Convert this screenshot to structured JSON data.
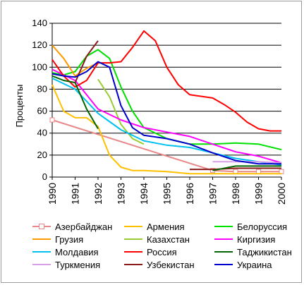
{
  "chart_data": {
    "type": "line",
    "title": "",
    "xlabel": "",
    "ylabel": "Проценты",
    "ylim": [
      0,
      140
    ],
    "yticks": [
      0,
      20,
      40,
      60,
      80,
      100,
      120,
      140
    ],
    "x": [
      1990,
      1991,
      1992,
      1993,
      1994,
      1995,
      1996,
      1997,
      1998,
      1999,
      2000
    ],
    "xtick_labels": [
      "1990",
      "1991",
      "1992",
      "1993",
      "1994",
      "1995",
      "1996",
      "1997",
      "1998",
      "1999",
      "2000"
    ],
    "grid": "horizontal",
    "legend_position": "bottom",
    "series": [
      {
        "name": "Азербайджан",
        "color": "#e8888a",
        "marker": "square",
        "points": [
          [
            1990,
            52
          ],
          [
            1997,
            6
          ],
          [
            1998,
            5
          ],
          [
            1999,
            5
          ],
          [
            2000,
            5
          ]
        ]
      },
      {
        "name": "Армения",
        "color": "#ffc000",
        "points": [
          [
            1990,
            84
          ],
          [
            1990.5,
            60
          ],
          [
            1991,
            54
          ],
          [
            1991.5,
            54
          ],
          [
            1992,
            46
          ],
          [
            1992.5,
            20
          ],
          [
            1993,
            9
          ],
          [
            1993.5,
            6
          ],
          [
            1994,
            6
          ],
          [
            1995,
            5
          ],
          [
            1996,
            3
          ],
          [
            1997,
            3
          ],
          [
            1998,
            3
          ],
          [
            1999,
            3
          ],
          [
            2000,
            3
          ]
        ]
      },
      {
        "name": "Белоруссия",
        "color": "#00e000",
        "points": [
          [
            1990,
            95
          ],
          [
            1990.5,
            93
          ],
          [
            1991,
            96
          ],
          [
            1991.5,
            110
          ],
          [
            1992,
            116
          ],
          [
            1992.5,
            108
          ],
          [
            1993,
            82
          ],
          [
            1993.5,
            60
          ],
          [
            1994,
            45
          ],
          [
            1995,
            35
          ],
          [
            1996,
            30
          ],
          [
            1997,
            30
          ],
          [
            1998,
            31
          ],
          [
            1999,
            30
          ],
          [
            2000,
            25
          ]
        ]
      },
      {
        "name": "Грузия",
        "color": "#ff9900",
        "points": [
          [
            1990,
            120
          ],
          [
            1990.5,
            108
          ],
          [
            1991,
            92
          ],
          [
            1991.5,
            99
          ],
          [
            1992,
            104
          ]
        ]
      },
      {
        "name": "Казахстан",
        "color": "#9acd32",
        "points": [
          [
            1992,
            89
          ],
          [
            1992.5,
            73
          ],
          [
            1993,
            48
          ],
          [
            1993.5,
            35
          ],
          [
            1994,
            30
          ]
        ]
      },
      {
        "name": "Киргизия",
        "color": "#ff00ff",
        "points": [
          [
            1990,
            98
          ],
          [
            1991,
            88
          ],
          [
            1992,
            62
          ],
          [
            1993,
            52
          ],
          [
            1994,
            45
          ],
          [
            1995,
            41
          ],
          [
            1996,
            37
          ],
          [
            1997,
            30
          ],
          [
            1998,
            23
          ],
          [
            1999,
            19
          ],
          [
            2000,
            13
          ]
        ]
      },
      {
        "name": "Молдавия",
        "color": "#00c0f0",
        "points": [
          [
            1990,
            90
          ],
          [
            1991,
            80
          ],
          [
            1992,
            58
          ],
          [
            1993,
            43
          ],
          [
            1994,
            33
          ],
          [
            1995,
            29
          ],
          [
            1996,
            27
          ],
          [
            1997,
            22
          ],
          [
            1998,
            17
          ],
          [
            1999,
            14
          ],
          [
            2000,
            11
          ]
        ]
      },
      {
        "name": "Россия",
        "color": "#ff0000",
        "points": [
          [
            1990,
            107
          ],
          [
            1990.5,
            92
          ],
          [
            1991,
            82
          ],
          [
            1991.5,
            88
          ],
          [
            1992,
            104
          ],
          [
            1992.5,
            104
          ],
          [
            1993,
            105
          ],
          [
            1993.5,
            118
          ],
          [
            1994,
            133
          ],
          [
            1994.5,
            124
          ],
          [
            1995,
            100
          ],
          [
            1995.5,
            84
          ],
          [
            1996,
            75
          ],
          [
            1997,
            72
          ],
          [
            1997.5,
            66
          ],
          [
            1998,
            59
          ],
          [
            1998.5,
            50
          ],
          [
            1999,
            44
          ],
          [
            1999.5,
            42
          ],
          [
            2000,
            42
          ]
        ]
      },
      {
        "name": "Таджикистан",
        "color": "#006400",
        "points": [
          [
            1990,
            92
          ],
          [
            1990.5,
            88
          ],
          [
            1991,
            86
          ],
          [
            1991.5,
            62
          ],
          [
            1992,
            44
          ]
        ]
      },
      {
        "name": "Туркмения",
        "color": "#d8a0e8",
        "points": [
          [
            1997,
            14
          ],
          [
            1998,
            14
          ],
          [
            1999,
            14
          ],
          [
            2000,
            13
          ]
        ]
      },
      {
        "name": "Узбекистан",
        "color": "#8b1a1a",
        "points": [
          [
            1991,
            86
          ],
          [
            1991.5,
            110
          ],
          [
            1992,
            124
          ]
        ]
      },
      {
        "name": "Узбекистан",
        "color": "#8b1a1a",
        "in_legend": false,
        "points": [
          [
            1996,
            7
          ],
          [
            1997,
            7
          ],
          [
            1998,
            8
          ],
          [
            1999,
            8
          ],
          [
            2000,
            8
          ]
        ]
      },
      {
        "name": "Таджикистан",
        "color": "#006400",
        "in_legend": false,
        "points": [
          [
            1997,
            6
          ],
          [
            1998,
            10
          ],
          [
            1999,
            10
          ],
          [
            2000,
            10
          ]
        ]
      },
      {
        "name": "Украина",
        "color": "#0000cc",
        "points": [
          [
            1990,
            94
          ],
          [
            1990.5,
            92
          ],
          [
            1991,
            91
          ],
          [
            1991.5,
            96
          ],
          [
            1992,
            105
          ],
          [
            1992.5,
            100
          ],
          [
            1993,
            65
          ],
          [
            1993.5,
            45
          ],
          [
            1994,
            38
          ],
          [
            1995,
            35
          ],
          [
            1996,
            30
          ],
          [
            1997,
            22
          ],
          [
            1998,
            15
          ],
          [
            1999,
            12
          ],
          [
            2000,
            12
          ]
        ]
      }
    ]
  },
  "legend": {
    "items": [
      {
        "name": "Азербайджан",
        "color": "#e8888a",
        "marker": "square"
      },
      {
        "name": "Армения",
        "color": "#ffc000"
      },
      {
        "name": "Белоруссия",
        "color": "#00e000"
      },
      {
        "name": "Грузия",
        "color": "#ff9900"
      },
      {
        "name": "Казахстан",
        "color": "#9acd32"
      },
      {
        "name": "Киргизия",
        "color": "#ff00ff"
      },
      {
        "name": "Молдавия",
        "color": "#00c0f0"
      },
      {
        "name": "Россия",
        "color": "#ff0000"
      },
      {
        "name": "Таджикистан",
        "color": "#006400"
      },
      {
        "name": "Туркмения",
        "color": "#d8a0e8"
      },
      {
        "name": "Узбекистан",
        "color": "#8b1a1a"
      },
      {
        "name": "Украина",
        "color": "#0000cc"
      }
    ]
  }
}
